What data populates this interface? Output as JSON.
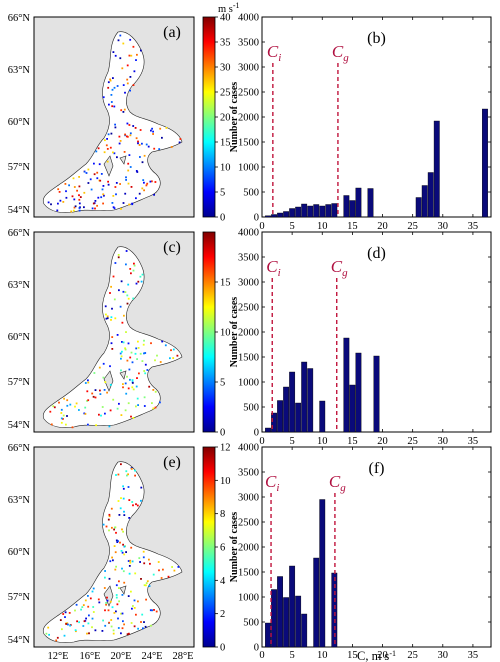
{
  "maps": {
    "lat_labels": [
      "66°N",
      "63°N",
      "60°N",
      "57°N",
      "54°N"
    ],
    "lon_labels": [
      "12°E",
      "16°E",
      "20°E",
      "24°E",
      "28°E"
    ],
    "land_color": "#e3e3e3",
    "panels": [
      {
        "letter": "(a)",
        "cbar_unit": "m s",
        "cbar_unit_exp": "-1",
        "cbar_max": 40,
        "cbar_ticks": [
          0,
          5,
          10,
          15,
          20,
          25,
          30,
          35,
          40
        ]
      },
      {
        "letter": "(c)",
        "cbar_unit": "",
        "cbar_unit_exp": "",
        "cbar_max": 20,
        "cbar_ticks": [
          0,
          5,
          10,
          15
        ]
      },
      {
        "letter": "(e)",
        "cbar_unit": "",
        "cbar_unit_exp": "",
        "cbar_max": 12,
        "cbar_ticks": [
          0,
          2,
          4,
          6,
          8,
          10,
          12
        ]
      }
    ]
  },
  "chart_data": [
    {
      "type": "bar",
      "panel": "(b)",
      "ylabel": "Number of cases",
      "xlabel": "",
      "xlim": [
        0,
        38
      ],
      "ylim": [
        0,
        4000
      ],
      "xticks": [
        0,
        5,
        10,
        15,
        20,
        25,
        30,
        35
      ],
      "yticks": [
        0,
        500,
        1000,
        1500,
        2000,
        2500,
        3000,
        3500,
        4000
      ],
      "bar_color": "#0a0a7a",
      "bin_width": 0.9,
      "x": [
        1,
        2,
        3,
        4,
        5,
        6,
        7,
        8,
        9,
        10,
        11,
        12,
        14,
        15,
        16,
        18,
        26,
        27,
        28,
        29,
        37
      ],
      "values": [
        25,
        50,
        80,
        110,
        170,
        200,
        260,
        220,
        250,
        220,
        250,
        270,
        430,
        330,
        580,
        570,
        390,
        630,
        890,
        1920,
        2160
      ],
      "markers": [
        {
          "symbol": "C",
          "sub": "i",
          "x": 1.8
        },
        {
          "symbol": "C",
          "sub": "g",
          "x": 12.6
        }
      ]
    },
    {
      "type": "bar",
      "panel": "(d)",
      "ylabel": "Number of cases",
      "xlabel": "",
      "xlim": [
        0,
        38
      ],
      "ylim": [
        0,
        4000
      ],
      "xticks": [
        0,
        5,
        10,
        15,
        20,
        25,
        30,
        35
      ],
      "yticks": [
        0,
        500,
        1000,
        1500,
        2000,
        2500,
        3000,
        3500,
        4000
      ],
      "bar_color": "#0a0a7a",
      "bin_width": 0.9,
      "x": [
        1,
        2,
        3,
        4,
        5,
        6,
        7,
        8,
        10,
        14,
        15,
        16,
        19
      ],
      "values": [
        80,
        380,
        630,
        900,
        1200,
        580,
        1400,
        1270,
        620,
        1880,
        940,
        1580,
        1520
      ],
      "markers": [
        {
          "symbol": "C",
          "sub": "i",
          "x": 1.7
        },
        {
          "symbol": "C",
          "sub": "g",
          "x": 12.4
        }
      ]
    },
    {
      "type": "bar",
      "panel": "(f)",
      "ylabel": "Number of cases",
      "xlabel": "C, m s",
      "xlabel_exp": "-1",
      "xlim": [
        0,
        38
      ],
      "ylim": [
        0,
        4000
      ],
      "xticks": [
        0,
        5,
        10,
        15,
        20,
        25,
        30,
        35
      ],
      "yticks": [
        0,
        500,
        1000,
        1500,
        2000,
        2500,
        3000,
        3500,
        4000
      ],
      "bar_color": "#0a0a7a",
      "bin_width": 0.9,
      "x": [
        1,
        2,
        3,
        4,
        5,
        6,
        7,
        9,
        10,
        12
      ],
      "values": [
        480,
        1150,
        1410,
        990,
        1620,
        1020,
        660,
        1780,
        2950,
        1480
      ],
      "markers": [
        {
          "symbol": "C",
          "sub": "i",
          "x": 1.5
        },
        {
          "symbol": "C",
          "sub": "g",
          "x": 12.1
        }
      ]
    }
  ]
}
